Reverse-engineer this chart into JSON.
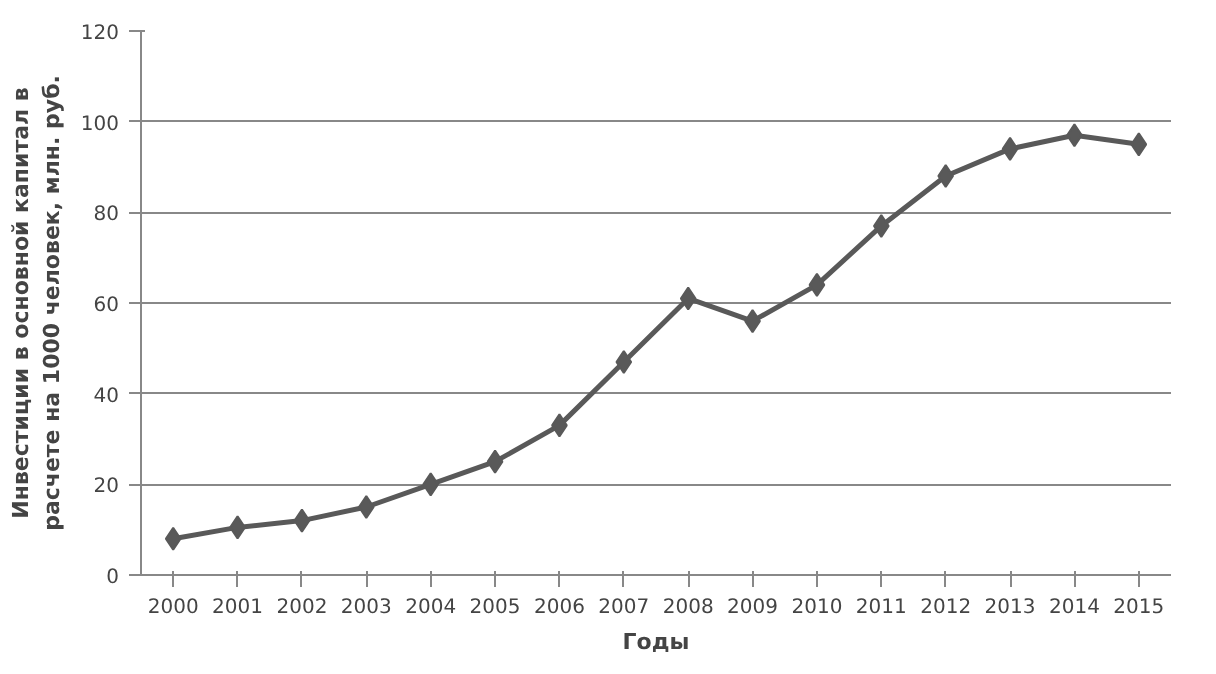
{
  "chart_data": {
    "type": "line",
    "xlabel": "Годы",
    "ylabel": "Инвестиции в основной капитал в\nрасчете на 1000 человек, млн. руб.",
    "categories": [
      "2000",
      "2001",
      "2002",
      "2003",
      "2004",
      "2005",
      "2006",
      "2007",
      "2008",
      "2009",
      "2010",
      "2011",
      "2012",
      "2013",
      "2014",
      "2015"
    ],
    "series": [
      {
        "color": "#595959",
        "values": [
          8,
          10.5,
          12,
          15,
          20,
          25,
          33,
          47,
          61,
          56,
          64,
          77,
          88,
          94,
          97,
          95
        ]
      }
    ],
    "ylim": [
      0,
      120
    ],
    "yticks": [
      0,
      20,
      40,
      60,
      80,
      100,
      120
    ],
    "grid": "y",
    "marker": "diamond",
    "line_style": "solid"
  }
}
